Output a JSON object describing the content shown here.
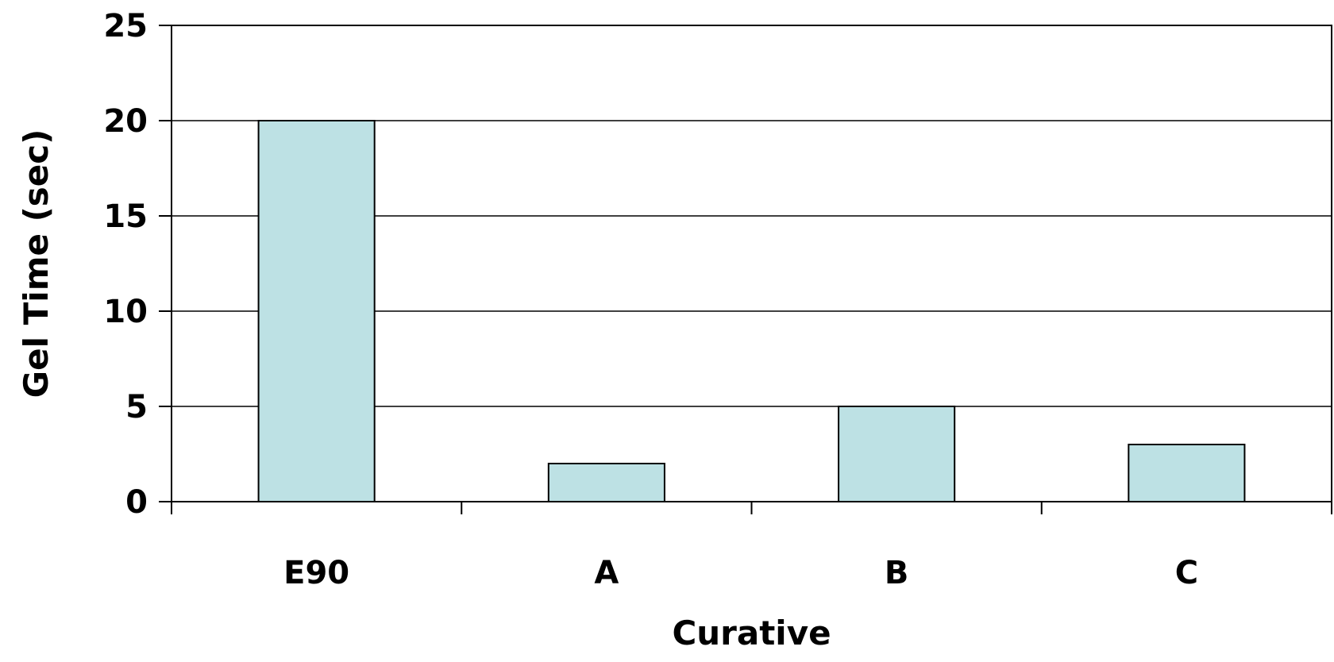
{
  "chart_data": {
    "type": "bar",
    "categories": [
      "E90",
      "A",
      "B",
      "C"
    ],
    "values": [
      20,
      2,
      5,
      3
    ],
    "title": "",
    "xlabel": "Curative",
    "ylabel": "Gel Time (sec)",
    "ylim": [
      0,
      25
    ],
    "yticks": [
      "0",
      "5",
      "10",
      "15",
      "20",
      "25"
    ],
    "grid": true,
    "legend": "none",
    "bar_color": "#bde1e4",
    "bar_edge_color": "#000000"
  }
}
